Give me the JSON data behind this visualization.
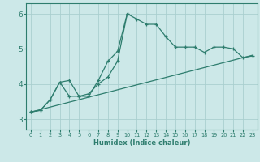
{
  "xlabel": "Humidex (Indice chaleur)",
  "background_color": "#cce8e8",
  "grid_color": "#aacfcf",
  "line_color": "#2e7d6e",
  "xlim": [
    -0.5,
    23.5
  ],
  "ylim": [
    2.7,
    6.3
  ],
  "xticks": [
    0,
    1,
    2,
    3,
    4,
    5,
    6,
    7,
    8,
    9,
    10,
    11,
    12,
    13,
    14,
    15,
    16,
    17,
    18,
    19,
    20,
    21,
    22,
    23
  ],
  "yticks": [
    3,
    4,
    5,
    6
  ],
  "line1_x": [
    0,
    1,
    2,
    3,
    4,
    5,
    6,
    7,
    8,
    9,
    10,
    11,
    12,
    13,
    14,
    15,
    16,
    17,
    18,
    19,
    20,
    21,
    22,
    23
  ],
  "line1_y": [
    3.2,
    3.25,
    3.55,
    4.05,
    4.1,
    3.65,
    3.65,
    4.1,
    4.65,
    4.93,
    6.0,
    5.85,
    5.7,
    5.7,
    5.35,
    5.05,
    5.05,
    5.05,
    4.9,
    5.05,
    5.05,
    5.0,
    4.75,
    4.8
  ],
  "line2_x": [
    0,
    1,
    2,
    3,
    4,
    5,
    6,
    7,
    8,
    9,
    10
  ],
  "line2_y": [
    3.2,
    3.25,
    3.55,
    4.05,
    3.65,
    3.65,
    3.72,
    4.0,
    4.2,
    4.65,
    6.0
  ],
  "line3_x": [
    0,
    23
  ],
  "line3_y": [
    3.2,
    4.82
  ]
}
